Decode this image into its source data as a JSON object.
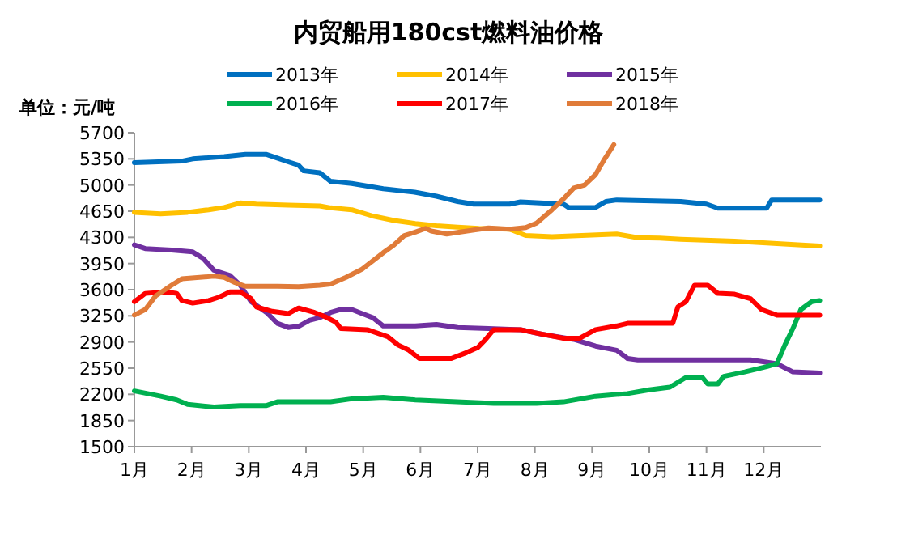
{
  "chart_data": {
    "type": "line",
    "title": "内贸船用180cst燃料油价格",
    "ylabel": "单位：元/吨",
    "xlim": [
      1,
      13
    ],
    "xticks": [
      {
        "value": 1,
        "label": "1月"
      },
      {
        "value": 2,
        "label": "2月"
      },
      {
        "value": 3,
        "label": "3月"
      },
      {
        "value": 4,
        "label": "4月"
      },
      {
        "value": 5,
        "label": "5月"
      },
      {
        "value": 6,
        "label": "6月"
      },
      {
        "value": 7,
        "label": "7月"
      },
      {
        "value": 8,
        "label": "8月"
      },
      {
        "value": 9,
        "label": "9月"
      },
      {
        "value": 10,
        "label": "10月"
      },
      {
        "value": 11,
        "label": "11月"
      },
      {
        "value": 12,
        "label": "12月"
      }
    ],
    "ylim": [
      1500,
      5700
    ],
    "yticks": [
      1500,
      1850,
      2200,
      2550,
      2900,
      3250,
      3600,
      3950,
      4300,
      4650,
      5000,
      5350,
      5700
    ],
    "legend": "top",
    "grid": false,
    "series": [
      {
        "name": "2013年",
        "color": "#0070c0",
        "x": [
          1.0,
          1.83,
          2.02,
          2.57,
          2.94,
          3.31,
          3.5,
          3.69,
          3.87,
          3.96,
          4.24,
          4.43,
          4.8,
          5.35,
          5.9,
          6.28,
          6.65,
          6.93,
          7.19,
          7.56,
          7.75,
          8.5,
          8.59,
          9.06,
          9.24,
          9.43,
          10.55,
          11.0,
          11.2,
          12.05,
          12.14,
          12.98
        ],
        "values": [
          5300,
          5320,
          5350,
          5380,
          5410,
          5410,
          5360,
          5310,
          5265,
          5190,
          5165,
          5050,
          5020,
          4950,
          4905,
          4850,
          4780,
          4745,
          4745,
          4745,
          4775,
          4745,
          4700,
          4700,
          4780,
          4800,
          4780,
          4745,
          4690,
          4690,
          4800,
          4800
        ]
      },
      {
        "name": "2014年",
        "color": "#ffc000",
        "x": [
          1.0,
          1.46,
          1.93,
          2.3,
          2.57,
          2.85,
          3.13,
          3.69,
          4.24,
          4.43,
          4.8,
          5.17,
          5.54,
          5.91,
          6.28,
          6.65,
          7.02,
          7.56,
          7.84,
          8.3,
          9.43,
          9.8,
          10.18,
          10.55,
          11.49,
          12.05,
          12.6,
          12.98
        ],
        "values": [
          4635,
          4615,
          4635,
          4670,
          4700,
          4760,
          4745,
          4730,
          4720,
          4695,
          4670,
          4585,
          4525,
          4485,
          4455,
          4435,
          4420,
          4410,
          4325,
          4310,
          4345,
          4295,
          4290,
          4275,
          4250,
          4225,
          4200,
          4185
        ]
      },
      {
        "name": "2015年",
        "color": "#7030a0",
        "x": [
          1.0,
          1.19,
          1.65,
          2.02,
          2.2,
          2.39,
          2.67,
          2.85,
          3.04,
          3.31,
          3.5,
          3.69,
          3.87,
          4.06,
          4.24,
          4.43,
          4.61,
          4.8,
          4.98,
          5.17,
          5.35,
          5.91,
          6.28,
          6.65,
          7.19,
          7.75,
          8.12,
          8.68,
          9.06,
          9.43,
          9.62,
          9.8,
          10.36,
          11.77,
          12.23,
          12.51,
          12.98
        ],
        "values": [
          4200,
          4150,
          4130,
          4105,
          4020,
          3860,
          3790,
          3660,
          3440,
          3295,
          3150,
          3095,
          3110,
          3190,
          3225,
          3295,
          3335,
          3335,
          3280,
          3225,
          3115,
          3115,
          3135,
          3095,
          3080,
          3065,
          3005,
          2935,
          2845,
          2790,
          2680,
          2660,
          2660,
          2660,
          2610,
          2500,
          2485
        ]
      },
      {
        "name": "2016年",
        "color": "#00b050",
        "x": [
          1.0,
          1.46,
          1.74,
          1.93,
          2.39,
          2.85,
          3.31,
          3.5,
          4.43,
          4.8,
          5.35,
          5.91,
          7.28,
          8.03,
          8.5,
          9.06,
          9.62,
          10.0,
          10.36,
          10.64,
          10.93,
          11.02,
          11.2,
          11.3,
          11.67,
          12.05,
          12.23,
          12.37,
          12.51,
          12.65,
          12.84,
          12.98
        ],
        "values": [
          2245,
          2175,
          2125,
          2065,
          2030,
          2050,
          2050,
          2100,
          2100,
          2140,
          2160,
          2125,
          2080,
          2080,
          2100,
          2175,
          2210,
          2260,
          2295,
          2425,
          2425,
          2340,
          2340,
          2440,
          2500,
          2570,
          2610,
          2860,
          3080,
          3335,
          3440,
          3455
        ]
      },
      {
        "name": "2017年",
        "color": "#ff0000",
        "x": [
          1.0,
          1.19,
          1.56,
          1.74,
          1.83,
          2.02,
          2.3,
          2.48,
          2.67,
          2.85,
          3.04,
          3.13,
          3.41,
          3.69,
          3.87,
          4.15,
          4.33,
          4.52,
          4.61,
          5.07,
          5.43,
          5.61,
          5.8,
          5.98,
          6.54,
          6.81,
          7.0,
          7.14,
          7.28,
          7.75,
          8.03,
          8.5,
          8.78,
          9.06,
          9.43,
          9.62,
          10.0,
          10.41,
          10.5,
          10.64,
          10.79,
          11.02,
          11.2,
          11.49,
          11.77,
          11.96,
          12.23,
          12.98
        ],
        "values": [
          3440,
          3550,
          3570,
          3550,
          3455,
          3420,
          3455,
          3500,
          3570,
          3570,
          3480,
          3370,
          3310,
          3280,
          3355,
          3295,
          3240,
          3165,
          3080,
          3065,
          2970,
          2860,
          2790,
          2680,
          2680,
          2760,
          2825,
          2935,
          3065,
          3065,
          3020,
          2950,
          2950,
          3065,
          3115,
          3150,
          3150,
          3150,
          3370,
          3440,
          3660,
          3660,
          3550,
          3540,
          3480,
          3335,
          3260,
          3260
        ]
      },
      {
        "name": "2018年",
        "color": "#e07b39",
        "x": [
          1.0,
          1.19,
          1.37,
          1.65,
          1.83,
          2.39,
          2.57,
          2.76,
          2.94,
          3.5,
          3.87,
          4.24,
          4.43,
          4.7,
          4.98,
          5.35,
          5.54,
          5.72,
          5.91,
          6.09,
          6.19,
          6.46,
          6.91,
          7.19,
          7.56,
          7.84,
          8.03,
          8.3,
          8.5,
          8.68,
          8.87,
          9.06,
          9.2,
          9.38
        ],
        "values": [
          3260,
          3335,
          3515,
          3660,
          3745,
          3780,
          3765,
          3695,
          3645,
          3645,
          3640,
          3660,
          3675,
          3765,
          3875,
          4095,
          4200,
          4325,
          4370,
          4420,
          4385,
          4345,
          4395,
          4425,
          4410,
          4430,
          4490,
          4670,
          4815,
          4960,
          5000,
          5140,
          5325,
          5540
        ]
      }
    ]
  }
}
